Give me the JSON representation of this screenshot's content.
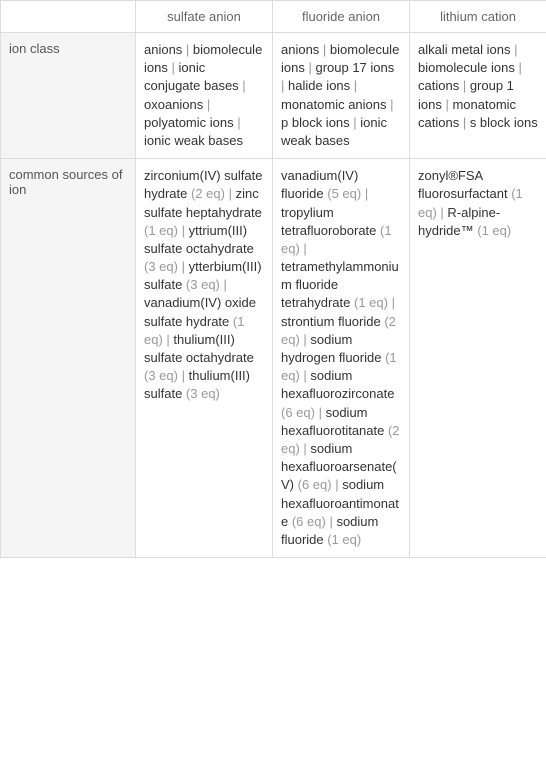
{
  "headers": {
    "col1": "sulfate anion",
    "col2": "fluoride anion",
    "col3": "lithium cation"
  },
  "rows": {
    "ion_class": {
      "label": "ion class",
      "sulfate": [
        {
          "text": "anions"
        },
        {
          "text": "biomolecule ions"
        },
        {
          "text": "ionic conjugate bases"
        },
        {
          "text": "oxoanions"
        },
        {
          "text": "polyatomic ions"
        },
        {
          "text": "ionic weak bases"
        }
      ],
      "fluoride": [
        {
          "text": "anions"
        },
        {
          "text": "biomolecule ions"
        },
        {
          "text": "group 17 ions"
        },
        {
          "text": "halide ions"
        },
        {
          "text": "monatomic anions"
        },
        {
          "text": "p block ions"
        },
        {
          "text": "ionic weak bases"
        }
      ],
      "lithium": [
        {
          "text": "alkali metal ions"
        },
        {
          "text": "biomolecule ions"
        },
        {
          "text": "cations"
        },
        {
          "text": "group 1 ions"
        },
        {
          "text": "monatomic cations"
        },
        {
          "text": "s block ions"
        }
      ]
    },
    "common_sources": {
      "label": "common sources of ion",
      "sulfate": [
        {
          "text": "zirconium(IV) sulfate hydrate",
          "eq": "(2 eq)"
        },
        {
          "text": "zinc sulfate heptahydrate",
          "eq": "(1 eq)"
        },
        {
          "text": "yttrium(III) sulfate octahydrate",
          "eq": "(3 eq)"
        },
        {
          "text": "ytterbium(III) sulfate",
          "eq": "(3 eq)"
        },
        {
          "text": "vanadium(IV) oxide sulfate hydrate",
          "eq": "(1 eq)"
        },
        {
          "text": "thulium(III) sulfate octahydrate",
          "eq": "(3 eq)"
        },
        {
          "text": "thulium(III) sulfate",
          "eq": "(3 eq)"
        }
      ],
      "fluoride": [
        {
          "text": "vanadium(IV) fluoride",
          "eq": "(5 eq)"
        },
        {
          "text": "tropylium tetrafluoroborate",
          "eq": "(1 eq)"
        },
        {
          "text": "tetramethylammonium fluoride tetrahydrate",
          "eq": "(1 eq)"
        },
        {
          "text": "strontium fluoride",
          "eq": "(2 eq)"
        },
        {
          "text": "sodium hydrogen fluoride",
          "eq": "(1 eq)"
        },
        {
          "text": "sodium hexafluorozirconate",
          "eq": "(6 eq)"
        },
        {
          "text": "sodium hexafluorotitanate",
          "eq": "(2 eq)"
        },
        {
          "text": "sodium hexafluoroarsenate(V)",
          "eq": "(6 eq)"
        },
        {
          "text": "sodium hexafluoroantimonate",
          "eq": "(6 eq)"
        },
        {
          "text": "sodium fluoride",
          "eq": "(1 eq)"
        }
      ],
      "lithium": [
        {
          "text": "zonyl®FSA fluorosurfactant",
          "eq": "(1 eq)"
        },
        {
          "text": "R-alpine-hydride™",
          "eq": "(1 eq)"
        }
      ]
    }
  },
  "colors": {
    "border": "#dddddd",
    "header_bg": "#ffffff",
    "label_bg": "#f5f5f5",
    "text": "#333333",
    "muted": "#999999"
  }
}
